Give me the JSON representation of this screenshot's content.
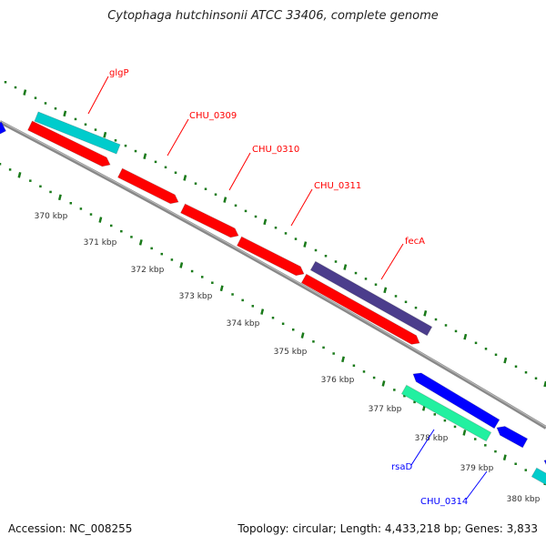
{
  "title": "Cytophaga hutchinsonii ATCC 33406, complete genome",
  "footer": {
    "accession": "Accession: NC_008255",
    "topology": "Topology: circular; Length: 4,433,218 bp; Genes: 3,833"
  },
  "colors": {
    "forward_gene": "#ff0000",
    "reverse_gene": "#0000ff",
    "cyan": "#00cccc",
    "purple": "#4b3d8c",
    "green": "#22f0a0",
    "backbone": "#888888",
    "ticks": "#1a7a1a"
  },
  "kbp_labels": [
    "370 kbp",
    "371 kbp",
    "372 kbp",
    "373 kbp",
    "374 kbp",
    "375 kbp",
    "376 kbp",
    "377 kbp",
    "378 kbp",
    "379 kbp",
    "380 kbp"
  ],
  "gene_labels": [
    {
      "text": "glgP",
      "strand": "forward"
    },
    {
      "text": "CHU_0309",
      "strand": "forward"
    },
    {
      "text": "CHU_0310",
      "strand": "forward"
    },
    {
      "text": "CHU_0311",
      "strand": "forward"
    },
    {
      "text": "fecA",
      "strand": "forward"
    },
    {
      "text": "rsaD",
      "strand": "reverse"
    },
    {
      "text": "CHU_0314",
      "strand": "reverse"
    }
  ]
}
